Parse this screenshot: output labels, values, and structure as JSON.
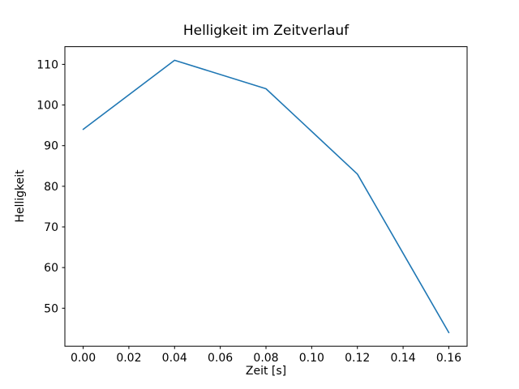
{
  "figure": {
    "title": "Helligkeit im Zeitverlauf",
    "xlabel": "Zeit [s]",
    "ylabel": "Helligkeit"
  },
  "chart_data": {
    "type": "line",
    "title": "Helligkeit im Zeitverlauf",
    "xlabel": "Zeit [s]",
    "ylabel": "Helligkeit",
    "x": [
      0.0,
      0.04,
      0.08,
      0.12,
      0.16
    ],
    "y": [
      94,
      111,
      104,
      83,
      44
    ],
    "xlim": [
      -0.008,
      0.168
    ],
    "ylim": [
      40.65,
      114.35
    ],
    "xticks": [
      0.0,
      0.02,
      0.04,
      0.06,
      0.08,
      0.1,
      0.12,
      0.14,
      0.16
    ],
    "xtick_labels": [
      "0.00",
      "0.02",
      "0.04",
      "0.06",
      "0.08",
      "0.10",
      "0.12",
      "0.14",
      "0.16"
    ],
    "yticks": [
      50,
      60,
      70,
      80,
      90,
      100,
      110
    ],
    "ytick_labels": [
      "50",
      "60",
      "70",
      "80",
      "90",
      "100",
      "110"
    ],
    "line_color": "#1f77b4",
    "spine_color": "#000000",
    "background_color": "#ffffff",
    "grid": false,
    "legend_position": "none"
  }
}
